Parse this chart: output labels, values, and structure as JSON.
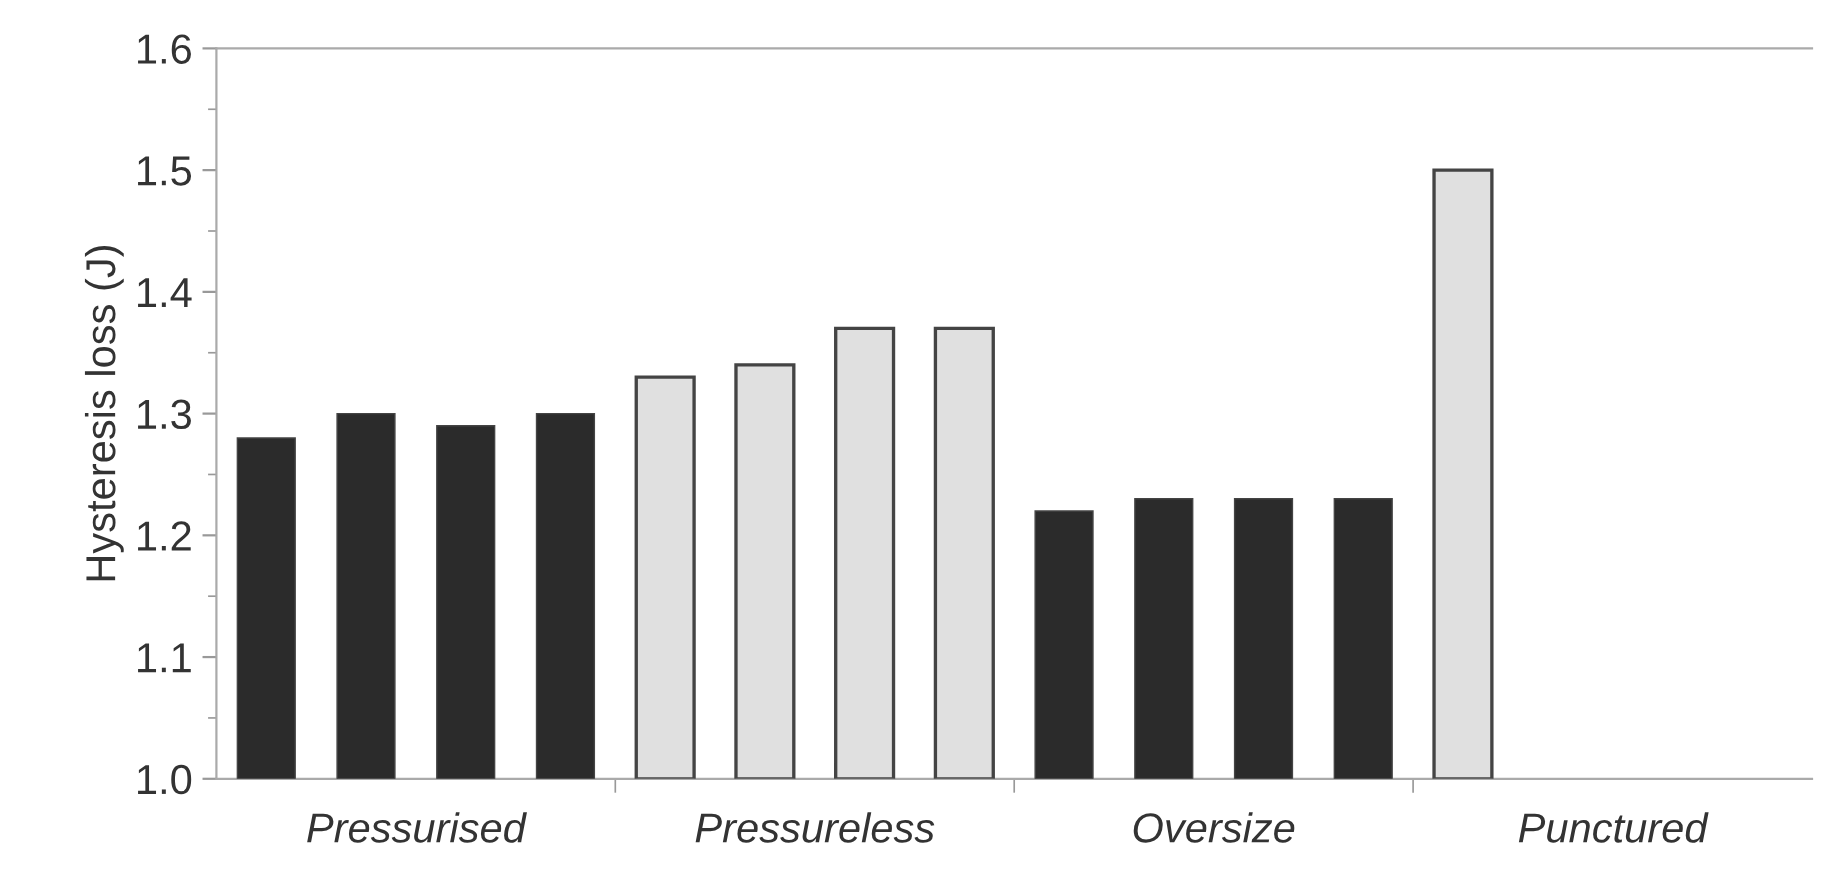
{
  "chart_data": {
    "type": "bar",
    "ylabel": "Hysteresis loss (J)",
    "categories": [
      "Pressurised",
      "Pressureless",
      "Oversize",
      "Punctured"
    ],
    "series": [
      {
        "colors": [
          "#2b2b2b",
          "#e0e0e0",
          "#2b2b2b",
          "#e0e0e0"
        ],
        "values": [
          1.28,
          1.33,
          1.22,
          1.5
        ]
      },
      {
        "colors": [
          "#2b2b2b",
          "#e0e0e0",
          "#2b2b2b",
          "#e0e0e0"
        ],
        "values": [
          1.3,
          1.34,
          1.23,
          null
        ]
      },
      {
        "colors": [
          "#2b2b2b",
          "#e0e0e0",
          "#2b2b2b",
          "#e0e0e0"
        ],
        "values": [
          1.29,
          1.37,
          1.23,
          null
        ]
      },
      {
        "colors": [
          "#2b2b2b",
          "#e0e0e0",
          "#2b2b2b",
          "#e0e0e0"
        ],
        "values": [
          1.3,
          1.37,
          1.23,
          null
        ]
      }
    ],
    "ylim": [
      1.0,
      1.6
    ],
    "yticks": [
      {
        "value": 1.0,
        "label": "1.0"
      },
      1.1,
      1.2,
      1.3,
      1.4,
      1.5,
      1.6
    ],
    "grid": false,
    "legend": false
  }
}
